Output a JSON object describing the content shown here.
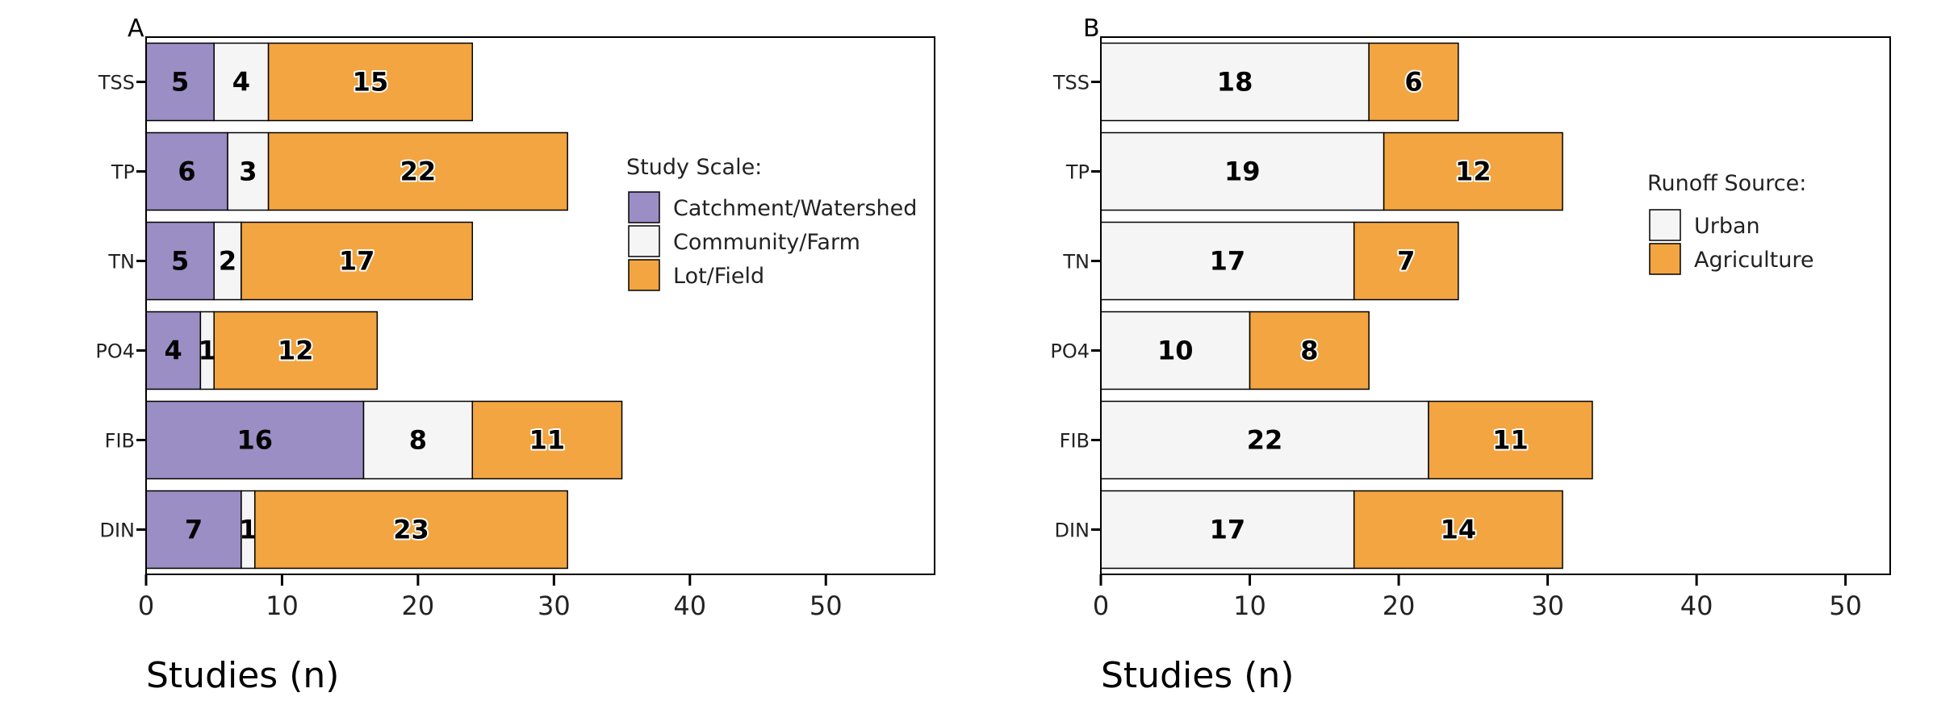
{
  "chart_data": [
    {
      "type": "bar",
      "orientation": "horizontal",
      "stacked": true,
      "panel": "A",
      "categories": [
        "TSS",
        "TP",
        "TN",
        "PO4",
        "FIB",
        "DIN"
      ],
      "series": [
        {
          "name": "Catchment/Watershed",
          "color": "#9b8ec4",
          "values": [
            5,
            6,
            5,
            4,
            16,
            7
          ]
        },
        {
          "name": "Community/Farm",
          "color": "#f5f5f5",
          "values": [
            4,
            3,
            2,
            1,
            8,
            1
          ]
        },
        {
          "name": "Lot/Field",
          "color": "#f2a541",
          "values": [
            15,
            22,
            17,
            12,
            11,
            23
          ]
        }
      ],
      "xlabel": "Studies (n)",
      "xlim": [
        0,
        58
      ],
      "xticks": [
        0,
        10,
        20,
        30,
        40,
        50
      ],
      "legend_title": "Study Scale:",
      "legend_position": "right",
      "grid": false
    },
    {
      "type": "bar",
      "orientation": "horizontal",
      "stacked": true,
      "panel": "B",
      "categories": [
        "TSS",
        "TP",
        "TN",
        "PO4",
        "FIB",
        "DIN"
      ],
      "series": [
        {
          "name": "Urban",
          "color": "#f5f5f5",
          "values": [
            18,
            19,
            17,
            10,
            22,
            17
          ]
        },
        {
          "name": "Agriculture",
          "color": "#f2a541",
          "values": [
            6,
            12,
            7,
            8,
            11,
            14
          ]
        }
      ],
      "xlabel": "Studies (n)",
      "xlim": [
        0,
        53
      ],
      "xticks": [
        0,
        10,
        20,
        30,
        40,
        50
      ],
      "legend_title": "Runoff Source:",
      "legend_position": "right",
      "grid": false
    }
  ]
}
